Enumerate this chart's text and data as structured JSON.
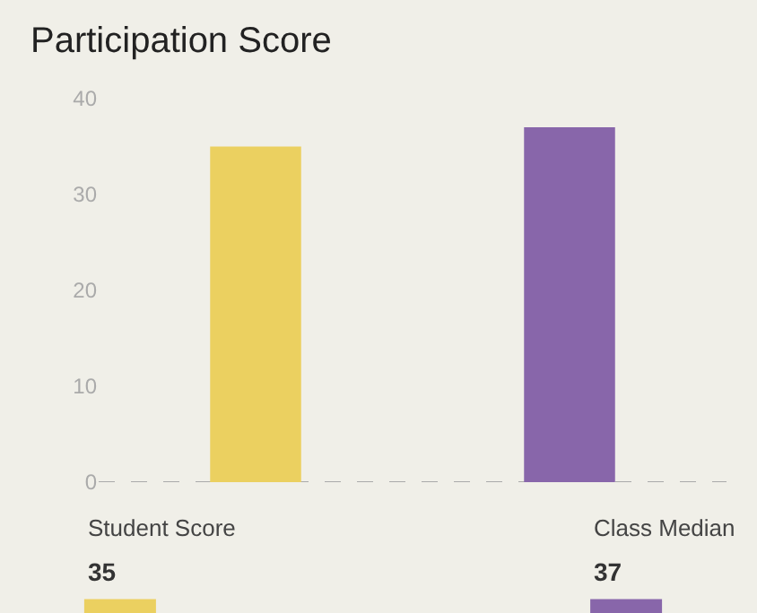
{
  "chart_data": {
    "type": "bar",
    "title": "Participation Score",
    "categories": [
      null,
      null
    ],
    "series": [
      {
        "name": "Student Score",
        "color": "#ebd060",
        "values": [
          35,
          null
        ]
      },
      {
        "name": "Class Median",
        "color": "#8866aa",
        "values": [
          null,
          37
        ]
      }
    ],
    "ylim": [
      0,
      40
    ],
    "yticks": [
      0,
      10,
      20,
      30,
      40
    ],
    "grid": false,
    "legend": "bottom",
    "annotations": [
      "35",
      "37"
    ]
  }
}
